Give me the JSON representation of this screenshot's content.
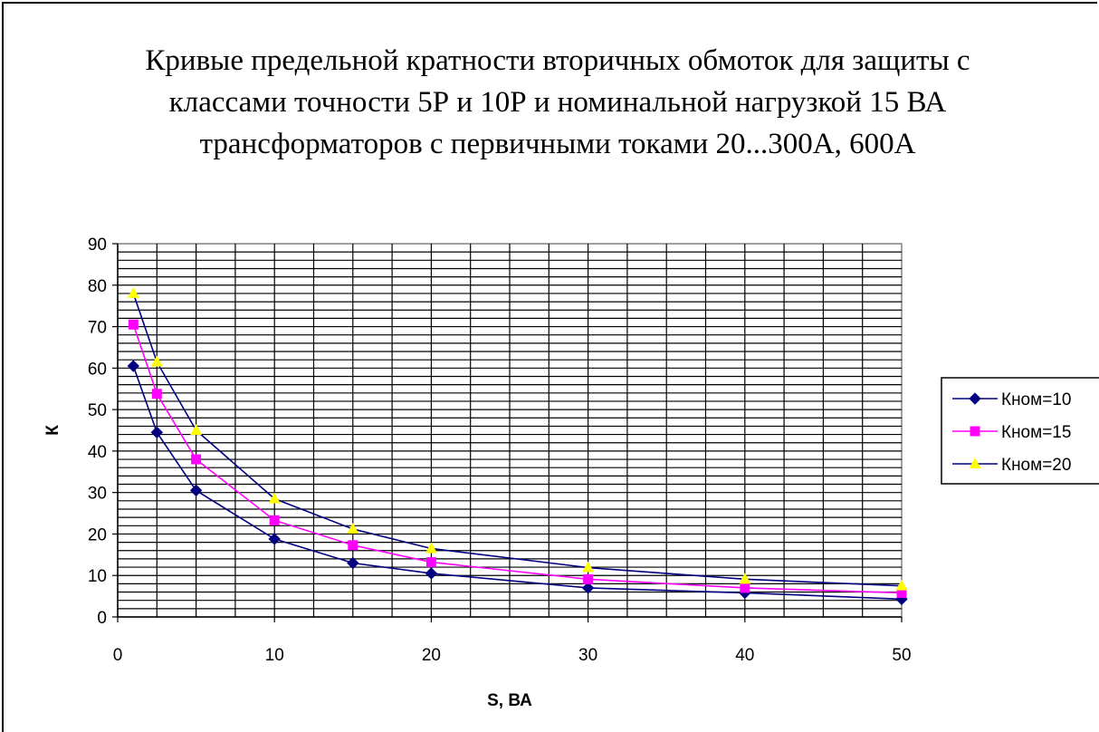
{
  "chart_data": {
    "type": "line",
    "title": "Кривые предельной кратности вторичных обмоток для защиты с классами точности 5Р и 10Р и номинальной нагрузкой 15 ВА трансформаторов с первичными токами 20...300А, 600А",
    "xlabel": "S, ВА",
    "ylabel": "К",
    "xlim": [
      0,
      50
    ],
    "ylim": [
      0,
      90
    ],
    "x_ticks": [
      0,
      10,
      20,
      30,
      40,
      50
    ],
    "y_ticks": [
      0,
      10,
      20,
      30,
      40,
      50,
      60,
      70,
      80,
      90
    ],
    "x_minor_step": 2.5,
    "y_minor_step": 2,
    "grid": true,
    "legend_position": "right",
    "x": [
      1,
      2.5,
      5,
      10,
      15,
      20,
      30,
      40,
      50
    ],
    "series": [
      {
        "name": "Кном=10",
        "color": "#000080",
        "marker": "diamond",
        "marker_color": "#000080",
        "values": [
          60.5,
          44.5,
          30.5,
          18.8,
          13,
          10.5,
          7,
          5.8,
          4.3
        ]
      },
      {
        "name": "Кном=15",
        "color": "#FF00FF",
        "marker": "square",
        "marker_color": "#FF00FF",
        "values": [
          70.5,
          53.8,
          38,
          23.3,
          17.3,
          13.2,
          9.1,
          7,
          5.8
        ]
      },
      {
        "name": "Кном=20",
        "color": "#000080",
        "marker": "triangle",
        "marker_color": "#FFFF00",
        "values": [
          78,
          61.5,
          45,
          28.5,
          21.2,
          16.5,
          11.9,
          9.1,
          7.5
        ]
      }
    ]
  }
}
